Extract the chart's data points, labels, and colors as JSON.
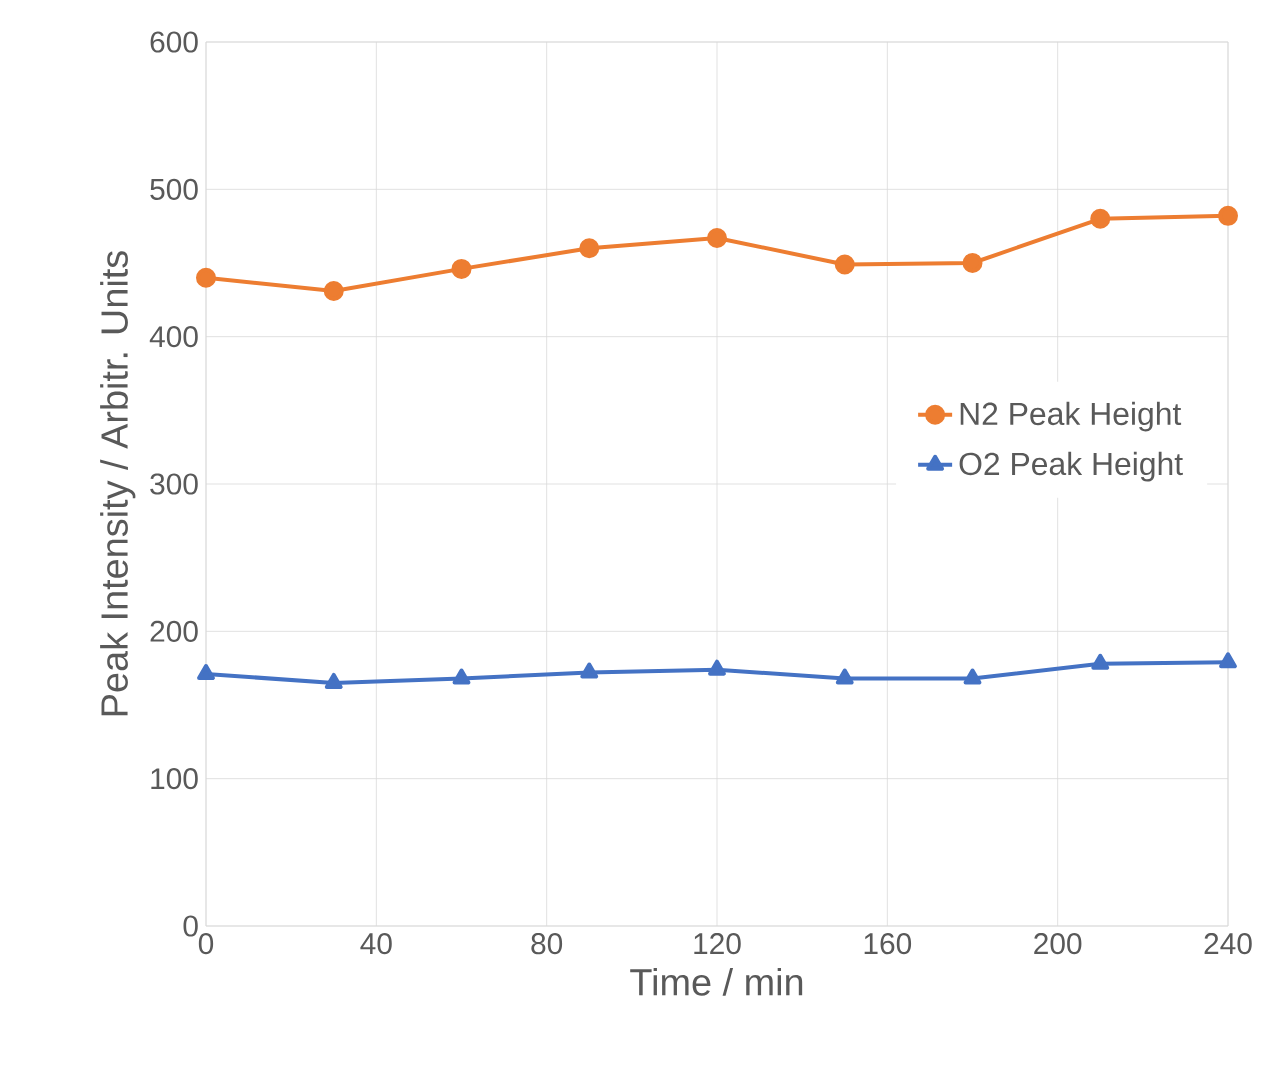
{
  "chart_data": {
    "type": "line",
    "xlabel": "Time / min",
    "ylabel": "Peak  Intensity / Arbitr. Units",
    "x": [
      0,
      30,
      60,
      90,
      120,
      150,
      180,
      210,
      240
    ],
    "series": [
      {
        "name": "N2 Peak Height",
        "color": "#ed7d31",
        "marker": "circle",
        "values": [
          440,
          431,
          446,
          460,
          467,
          449,
          450,
          480,
          482
        ]
      },
      {
        "name": "O2 Peak Height",
        "color": "#4472c4",
        "marker": "triangle",
        "values": [
          171,
          165,
          168,
          172,
          174,
          168,
          168,
          178,
          179
        ]
      }
    ],
    "xlim": [
      0,
      240
    ],
    "xticks": [
      0,
      40,
      80,
      120,
      160,
      200,
      240
    ],
    "ylim": [
      0,
      600
    ],
    "yticks": [
      0,
      100,
      200,
      300,
      400,
      500,
      600
    ],
    "grid": true,
    "legend": "right",
    "line_style": "solid"
  }
}
